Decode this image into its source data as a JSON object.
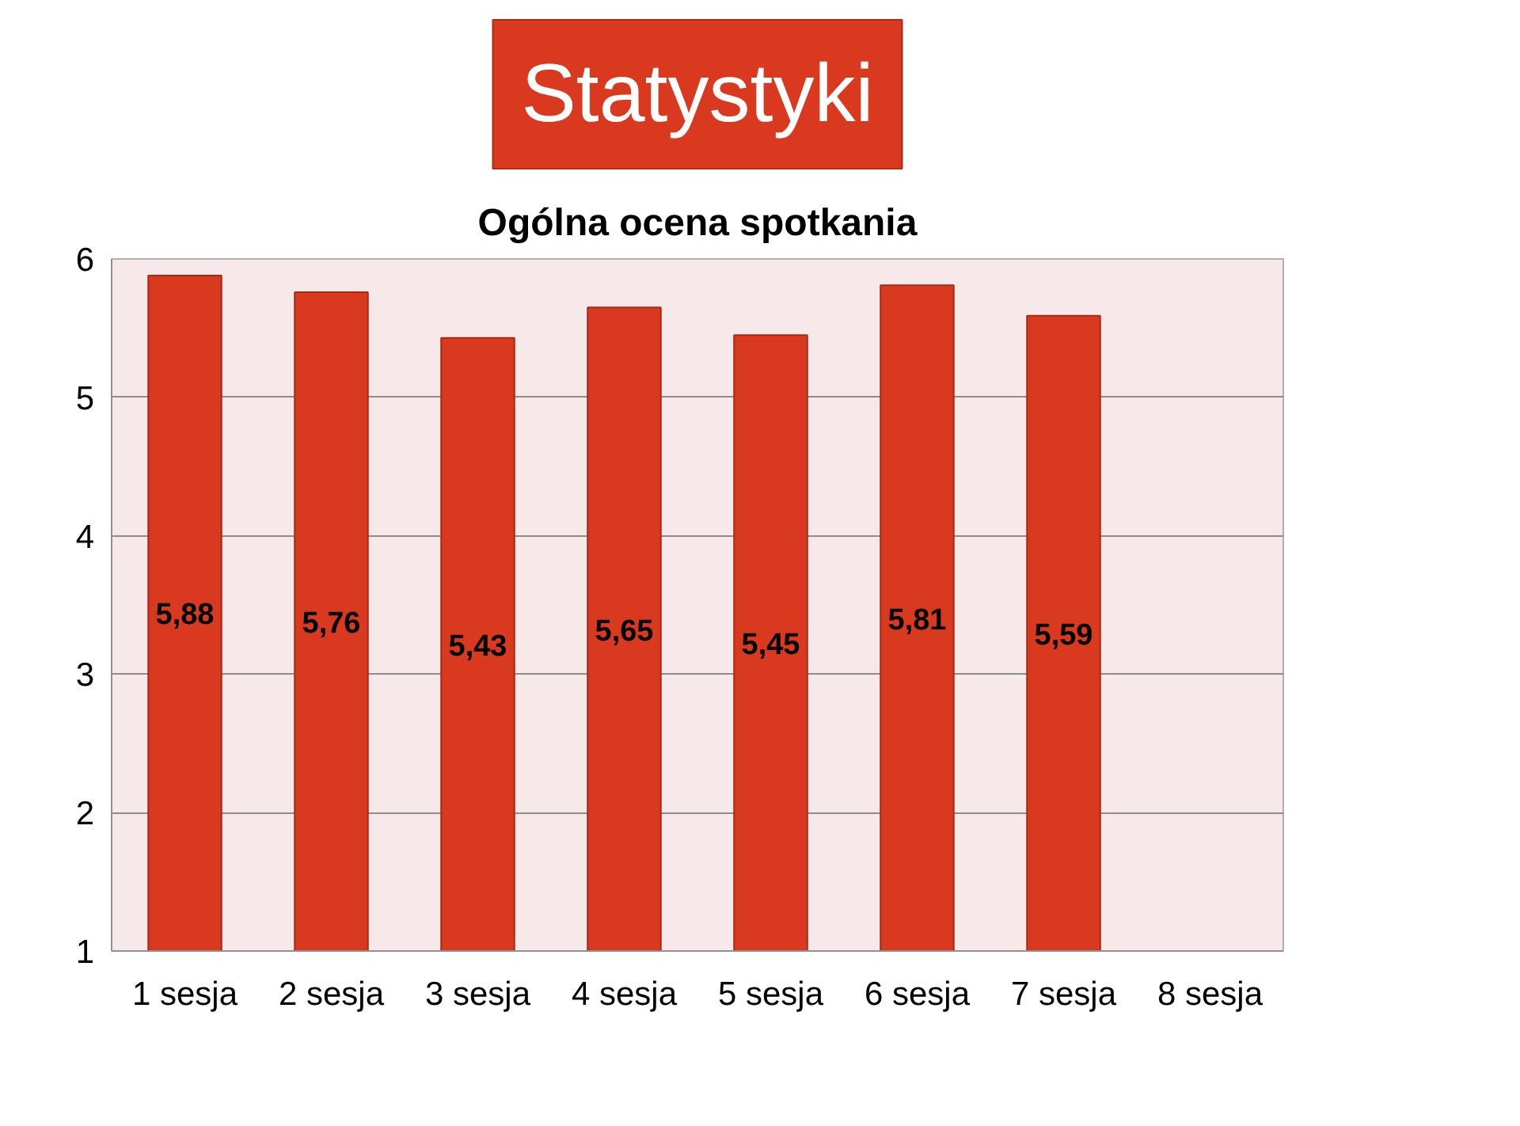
{
  "chart_data": {
    "type": "bar",
    "title": "Statystyki",
    "subtitle": "Ogólna ocena spotkania",
    "categories": [
      "1 sesja",
      "2 sesja",
      "3 sesja",
      "4 sesja",
      "5 sesja",
      "6 sesja",
      "7 sesja",
      "8 sesja"
    ],
    "values": [
      5.88,
      5.76,
      5.43,
      5.65,
      5.45,
      5.81,
      5.59,
      null
    ],
    "value_labels": [
      "5,88",
      "5,76",
      "5,43",
      "5,65",
      "5,45",
      "5,81",
      "5,59",
      null
    ],
    "color": "#d9391f",
    "ylim": [
      1,
      6
    ],
    "yticks": [
      1,
      2,
      3,
      4,
      5,
      6
    ],
    "grid": "y"
  }
}
